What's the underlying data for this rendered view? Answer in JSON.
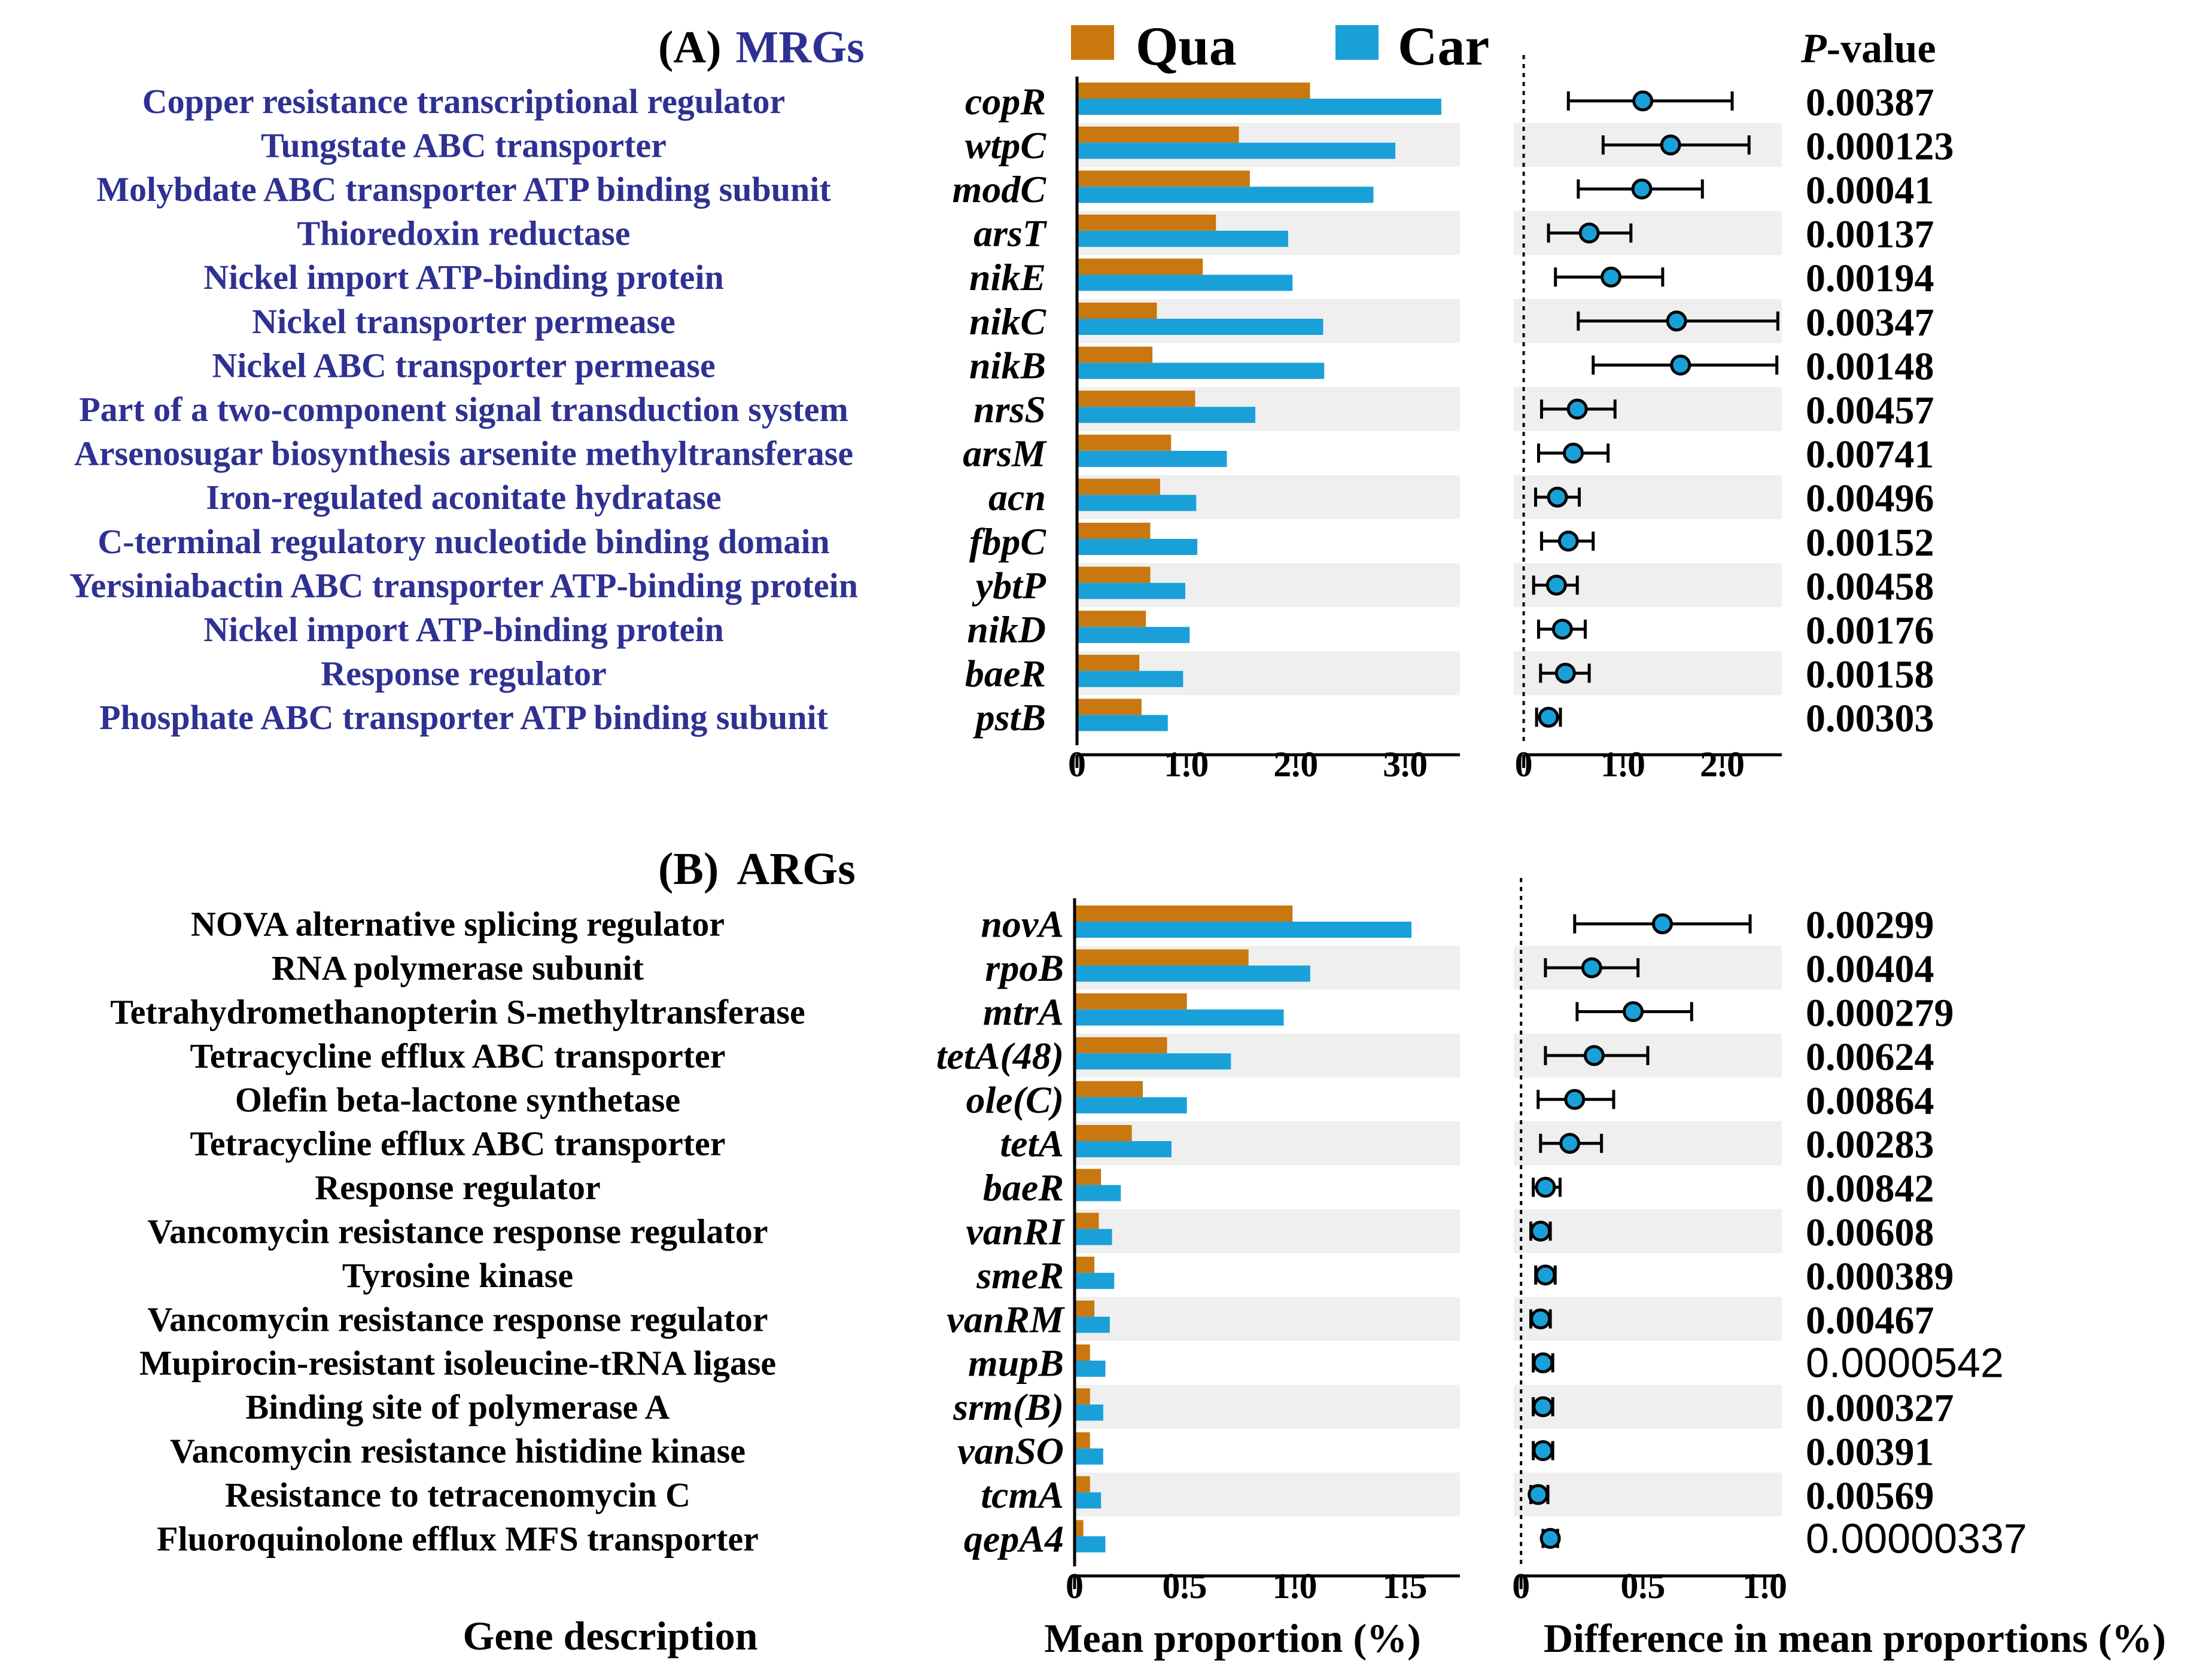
{
  "legend": [
    {
      "name": "Qua",
      "color": "#c8780f"
    },
    {
      "name": "Car",
      "color": "#1aa0d8"
    }
  ],
  "pvalue_header": {
    "italic": "P",
    "rest": "-value"
  },
  "gene_description_label": "Gene description",
  "chart_data": [
    {
      "type": "bar",
      "panel": "(A)",
      "title": "MRGs",
      "description_color": "#2e3192",
      "xlabel": "Mean proportion (%)",
      "xlim": [
        0,
        3.5
      ],
      "xticks": [
        0,
        1.0,
        2.0,
        3.0
      ],
      "xtick_labels": [
        "0",
        "1.0",
        "2.0",
        "3.0"
      ],
      "categories": [
        "copR",
        "wtpC",
        "modC",
        "arsT",
        "nikE",
        "nikC",
        "nikB",
        "nrsS",
        "arsM",
        "acn",
        "fbpC",
        "ybtP",
        "nikD",
        "baeR",
        "pstB"
      ],
      "descriptions": [
        "Copper resistance transcriptional regulator",
        "Tungstate ABC transporter",
        "Molybdate ABC transporter ATP binding subunit",
        "Thioredoxin reductase",
        "Nickel import ATP-binding protein",
        "Nickel transporter permease",
        "Nickel ABC transporter permease",
        "Part of a two-component signal transduction system",
        "Arsenosugar biosynthesis arsenite methyltransferase",
        "Iron-regulated aconitate hydratase",
        "C-terminal regulatory nucleotide binding domain",
        "Yersiniabactin ABC transporter ATP-binding protein",
        "Nickel import ATP-binding protein",
        "Response regulator",
        "Phosphate ABC transporter ATP binding subunit"
      ],
      "series": [
        {
          "name": "Qua",
          "values": [
            2.13,
            1.48,
            1.58,
            1.27,
            1.15,
            0.73,
            0.69,
            1.08,
            0.86,
            0.76,
            0.67,
            0.67,
            0.63,
            0.57,
            0.59
          ]
        },
        {
          "name": "Car",
          "values": [
            3.33,
            2.91,
            2.71,
            1.93,
            1.97,
            2.25,
            2.26,
            1.63,
            1.37,
            1.09,
            1.1,
            0.99,
            1.03,
            0.97,
            0.83
          ]
        }
      ],
      "difference": {
        "xlabel": "",
        "xlim": [
          -0.1,
          2.6
        ],
        "xticks": [
          0,
          1.0,
          2.0
        ],
        "xtick_labels": [
          "0",
          "1.0",
          "2.0"
        ],
        "mean": [
          1.2,
          1.48,
          1.19,
          0.66,
          0.88,
          1.54,
          1.58,
          0.54,
          0.5,
          0.34,
          0.45,
          0.33,
          0.39,
          0.42,
          0.25
        ],
        "low": [
          0.45,
          0.8,
          0.55,
          0.25,
          0.32,
          0.55,
          0.7,
          0.18,
          0.15,
          0.12,
          0.18,
          0.1,
          0.15,
          0.17,
          0.13
        ],
        "high": [
          2.1,
          2.27,
          1.8,
          1.08,
          1.4,
          2.56,
          2.55,
          0.92,
          0.85,
          0.56,
          0.7,
          0.54,
          0.62,
          0.66,
          0.37
        ]
      },
      "pvalues": [
        "0.00387",
        "0.000123",
        "0.00041",
        "0.00137",
        "0.00194",
        "0.00347",
        "0.00148",
        "0.00457",
        "0.00741",
        "0.00496",
        "0.00152",
        "0.00458",
        "0.00176",
        "0.00158",
        "0.00303"
      ],
      "pvalue_plain": [
        false,
        false,
        false,
        false,
        false,
        false,
        false,
        false,
        false,
        false,
        false,
        false,
        false,
        false,
        false
      ]
    },
    {
      "type": "bar",
      "panel": "(B)",
      "title": "ARGs",
      "description_color": "#000000",
      "xlabel": "Mean proportion (%)",
      "xlim": [
        0,
        1.75
      ],
      "xticks": [
        0,
        0.5,
        1.0,
        1.5
      ],
      "xtick_labels": [
        "0",
        "0.5",
        "1.0",
        "1.5"
      ],
      "categories": [
        "novA",
        "rpoB",
        "mtrA",
        "tetA(48)",
        "ole(C)",
        "tetA",
        "baeR",
        "vanRI",
        "smeR",
        "vanRM",
        "mupB",
        "srm(B)",
        "vanSO",
        "tcmA",
        "qepA4"
      ],
      "descriptions": [
        "NOVA alternative splicing regulator",
        "RNA polymerase subunit",
        "Tetrahydromethanopterin S-methyltransferase",
        "Tetracycline efflux ABC transporter",
        "Olefin beta-lactone synthetase",
        "Tetracycline efflux ABC transporter",
        "Response regulator",
        "Vancomycin resistance response regulator",
        "Tyrosine kinase",
        "Vancomycin resistance response regulator",
        "Mupirocin-resistant isoleucine-tRNA ligase",
        "Binding site of polymerase A",
        "Vancomycin resistance histidine kinase",
        "Resistance to tetracenomycin C",
        "Fluoroquinolone efflux MFS transporter"
      ],
      "series": [
        {
          "name": "Qua",
          "values": [
            0.99,
            0.79,
            0.51,
            0.42,
            0.31,
            0.26,
            0.12,
            0.11,
            0.09,
            0.09,
            0.07,
            0.07,
            0.07,
            0.07,
            0.04
          ]
        },
        {
          "name": "Car",
          "values": [
            1.53,
            1.07,
            0.95,
            0.71,
            0.51,
            0.44,
            0.21,
            0.17,
            0.18,
            0.16,
            0.14,
            0.13,
            0.13,
            0.12,
            0.14
          ]
        }
      ],
      "difference": {
        "xlabel": "Difference in mean proportions (%)",
        "xlim": [
          -0.03,
          1.07
        ],
        "xticks": [
          0,
          0.5,
          1.0
        ],
        "xtick_labels": [
          "0",
          "0.5",
          "1.0"
        ],
        "mean": [
          0.58,
          0.29,
          0.46,
          0.3,
          0.22,
          0.2,
          0.1,
          0.08,
          0.1,
          0.08,
          0.09,
          0.09,
          0.09,
          0.07,
          0.12
        ],
        "low": [
          0.22,
          0.1,
          0.23,
          0.1,
          0.07,
          0.08,
          0.05,
          0.04,
          0.06,
          0.04,
          0.05,
          0.05,
          0.05,
          0.04,
          0.09
        ],
        "high": [
          0.94,
          0.48,
          0.7,
          0.52,
          0.38,
          0.33,
          0.16,
          0.12,
          0.14,
          0.12,
          0.13,
          0.13,
          0.13,
          0.11,
          0.15
        ]
      },
      "pvalues": [
        "0.00299",
        "0.00404",
        "0.000279",
        "0.00624",
        "0.00864",
        "0.00283",
        "0.00842",
        "0.00608",
        "0.000389",
        "0.00467",
        "0.0000542",
        "0.000327",
        "0.00391",
        "0.00569",
        "0.00000337"
      ],
      "pvalue_plain": [
        false,
        false,
        false,
        false,
        false,
        false,
        false,
        false,
        false,
        false,
        true,
        false,
        false,
        false,
        true
      ]
    }
  ]
}
